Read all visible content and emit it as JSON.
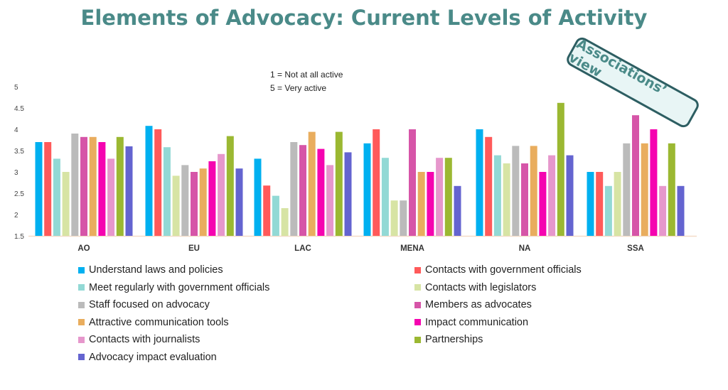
{
  "chart_data": {
    "type": "bar",
    "title": "Elements of Advocacy: Current Levels of Activity",
    "annotations": [
      "1 = Not at all active",
      "5 = Very active"
    ],
    "stamp": "Associations’ view",
    "categories": [
      "AO",
      "EU",
      "LAC",
      "MENA",
      "NA",
      "SSA"
    ],
    "ylim": [
      1.5,
      5
    ],
    "yticks": [
      "1.5",
      "2",
      "2.5",
      "3",
      "3.5",
      "4",
      "4.5",
      "5"
    ],
    "grid": false,
    "legend_placement": "bottom",
    "series": [
      {
        "name": "Understand laws and policies",
        "color": "#00b0f0",
        "values": [
          3.7,
          4.08,
          3.31,
          3.67,
          4.0,
          3.0
        ]
      },
      {
        "name": "Contacts with government officials",
        "color": "#ff5a5a",
        "values": [
          3.7,
          4.0,
          2.68,
          4.0,
          3.82,
          3.0
        ]
      },
      {
        "name": "Meet regularly with government officials",
        "color": "#92d9d5",
        "values": [
          3.31,
          3.58,
          2.44,
          3.33,
          3.39,
          2.67
        ]
      },
      {
        "name": "Contacts with legislators",
        "color": "#d7e4a4",
        "values": [
          3.0,
          2.91,
          2.15,
          2.33,
          3.2,
          3.0
        ]
      },
      {
        "name": "Staff focused on advocacy",
        "color": "#bbbbbb",
        "values": [
          3.9,
          3.16,
          3.7,
          2.33,
          3.61,
          3.67
        ]
      },
      {
        "name": "Members as advocates",
        "color": "#d655a8",
        "values": [
          3.82,
          3.0,
          3.63,
          4.0,
          3.2,
          4.33
        ]
      },
      {
        "name": "Attractive communication tools",
        "color": "#e9ad5e",
        "values": [
          3.82,
          3.08,
          3.94,
          3.0,
          3.61,
          3.67
        ]
      },
      {
        "name": "Impact communication",
        "color": "#f504b0",
        "values": [
          3.7,
          3.25,
          3.54,
          3.0,
          3.0,
          4.0
        ]
      },
      {
        "name": "Contacts with journalists",
        "color": "#e697cc",
        "values": [
          3.31,
          3.42,
          3.16,
          3.33,
          3.39,
          2.67
        ]
      },
      {
        "name": "Partnerships",
        "color": "#9bb832",
        "values": [
          3.82,
          3.84,
          3.94,
          3.33,
          4.62,
          3.67
        ]
      },
      {
        "name": "Advocacy impact evaluation",
        "color": "#6464d0",
        "values": [
          3.6,
          3.08,
          3.46,
          2.67,
          3.39,
          2.67
        ]
      }
    ]
  }
}
